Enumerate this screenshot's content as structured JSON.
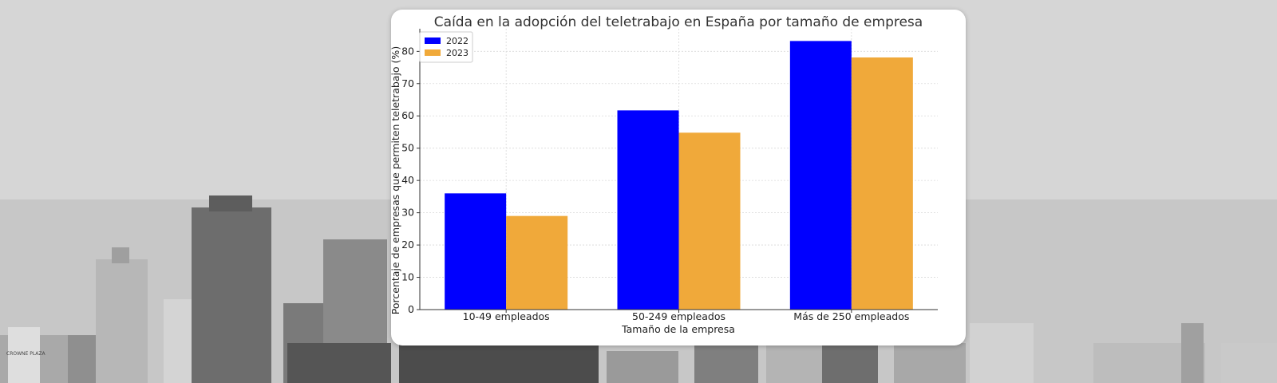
{
  "chart_data": {
    "type": "bar",
    "title": "Caída en la adopción del teletrabajo en España por tamaño de empresa",
    "xlabel": "Tamaño de la empresa",
    "ylabel": "Porcentaje de empresas que permiten teletrabajo (%)",
    "categories": [
      "10-49 empleados",
      "50-249 empleados",
      "Más de 250 empleados"
    ],
    "series": [
      {
        "name": "2022",
        "values": [
          36,
          61.7,
          83.2
        ],
        "color": "#0000ff"
      },
      {
        "name": "2023",
        "values": [
          29,
          54.8,
          78.1
        ],
        "color": "#f0a93a"
      }
    ],
    "ylim": [
      0,
      87
    ],
    "yticks": [
      0,
      10,
      20,
      30,
      40,
      50,
      60,
      70,
      80
    ],
    "grid": true,
    "legend_position": "top-left"
  },
  "background": {
    "description_color": "#cfcfcf",
    "sign_text": "CROWNE PLAZA"
  }
}
